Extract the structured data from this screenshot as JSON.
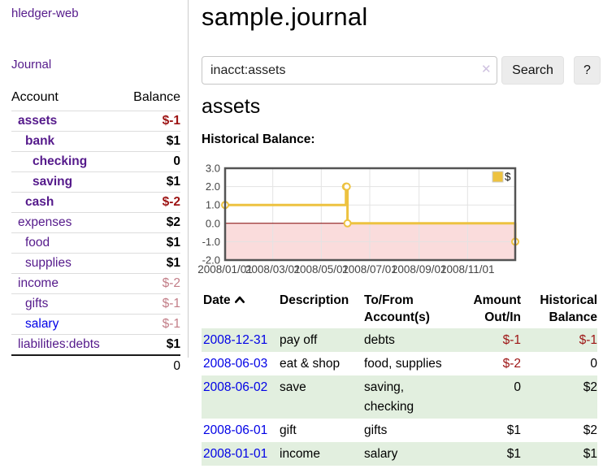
{
  "brand": "hledger-web",
  "nav": {
    "journal_label": "Journal"
  },
  "sidebar": {
    "account_header": "Account",
    "balance_header": "Balance",
    "accounts": [
      {
        "name": "assets",
        "balance": "$-1",
        "depth": 0,
        "selected": true,
        "balance_tone": "negative",
        "link_tone": "purple"
      },
      {
        "name": "bank",
        "balance": "$1",
        "depth": 1,
        "selected": true,
        "balance_tone": "normal",
        "link_tone": "purple"
      },
      {
        "name": "checking",
        "balance": "0",
        "depth": 2,
        "selected": true,
        "balance_tone": "normal",
        "link_tone": "purple"
      },
      {
        "name": "saving",
        "balance": "$1",
        "depth": 2,
        "selected": true,
        "balance_tone": "normal",
        "link_tone": "purple"
      },
      {
        "name": "cash",
        "balance": "$-2",
        "depth": 1,
        "selected": true,
        "balance_tone": "negative",
        "link_tone": "purple"
      },
      {
        "name": "expenses",
        "balance": "$2",
        "depth": 0,
        "selected": false,
        "balance_tone": "normal",
        "link_tone": "purple"
      },
      {
        "name": "food",
        "balance": "$1",
        "depth": 1,
        "selected": false,
        "balance_tone": "normal",
        "link_tone": "purple"
      },
      {
        "name": "supplies",
        "balance": "$1",
        "depth": 1,
        "selected": false,
        "balance_tone": "normal",
        "link_tone": "purple"
      },
      {
        "name": "income",
        "balance": "$-2",
        "depth": 0,
        "selected": false,
        "balance_tone": "negative-muted",
        "link_tone": "purple"
      },
      {
        "name": "gifts",
        "balance": "$-1",
        "depth": 1,
        "selected": false,
        "balance_tone": "negative-muted",
        "link_tone": "purple"
      },
      {
        "name": "salary",
        "balance": "$-1",
        "depth": 1,
        "selected": false,
        "balance_tone": "negative-muted",
        "link_tone": "blue"
      },
      {
        "name": "liabilities:debts",
        "balance": "$1",
        "depth": 0,
        "selected": false,
        "balance_tone": "normal",
        "link_tone": "purple"
      }
    ],
    "total": "0"
  },
  "header": {
    "title": "sample.journal"
  },
  "search": {
    "value": "inacct:assets",
    "clear_icon": "✕",
    "button_label": "Search",
    "help_label": "?"
  },
  "account_page": {
    "heading": "assets",
    "chart_label": "Historical Balance:"
  },
  "chart_data": {
    "type": "line",
    "title": "Historical Balance:",
    "step": true,
    "ylim": [
      -2.0,
      3.0
    ],
    "y_ticks": [
      3.0,
      2.0,
      1.0,
      0.0,
      -1.0,
      -2.0
    ],
    "x_ticks": [
      {
        "label": "2008/01/01",
        "x": 0.0
      },
      {
        "label": "2008/03/01",
        "x": 0.1644
      },
      {
        "label": "2008/05/01",
        "x": 0.3315
      },
      {
        "label": "2008/07/01",
        "x": 0.4986
      },
      {
        "label": "2008/09/01",
        "x": 0.6685
      },
      {
        "label": "2008/11/01",
        "x": 0.8356
      }
    ],
    "series": [
      {
        "name": "$",
        "color": "#edc240",
        "points": [
          {
            "date": "2008-01-01",
            "x": 0.0,
            "y": 1
          },
          {
            "date": "2008-06-01",
            "x": 0.4164,
            "y": 2
          },
          {
            "date": "2008-06-02",
            "x": 0.4192,
            "y": 2
          },
          {
            "date": "2008-06-03",
            "x": 0.4219,
            "y": 0
          },
          {
            "date": "2008-12-31",
            "x": 1.0,
            "y": -1
          }
        ]
      }
    ],
    "legend": {
      "label": "$",
      "position": "top-right"
    },
    "grid": true,
    "negative_region_color": "#fadcdc",
    "zero_line_color": "#800000",
    "border_color": "#545454",
    "grid_color": "#e3e3e3"
  },
  "register": {
    "columns": [
      "Date",
      "Description",
      "To/From Account(s)",
      "Amount Out/In",
      "Historical Balance"
    ],
    "rows": [
      {
        "date": "2008-12-31",
        "description": "pay off",
        "accounts": "debts",
        "amount": "$-1",
        "amount_negative": true,
        "balance": "$-1",
        "balance_negative": true
      },
      {
        "date": "2008-06-03",
        "description": "eat & shop",
        "accounts": "food, supplies",
        "amount": "$-2",
        "amount_negative": true,
        "balance": "0",
        "balance_negative": false
      },
      {
        "date": "2008-06-02",
        "description": "save",
        "accounts": "saving, checking",
        "amount": "0",
        "amount_negative": false,
        "balance": "$2",
        "balance_negative": false
      },
      {
        "date": "2008-06-01",
        "description": "gift",
        "accounts": "gifts",
        "amount": "$1",
        "amount_negative": false,
        "balance": "$2",
        "balance_negative": false
      },
      {
        "date": "2008-01-01",
        "description": "income",
        "accounts": "salary",
        "amount": "$1",
        "amount_negative": false,
        "balance": "$1",
        "balance_negative": false
      }
    ]
  },
  "colors": {
    "link_purple": "#551a8b",
    "link_blue": "#0000e6",
    "negative_strong": "#9d1414",
    "negative_muted": "#c27d87",
    "row_stripe_green": "#e2efdf",
    "chart_line_gold": "#edc240"
  }
}
